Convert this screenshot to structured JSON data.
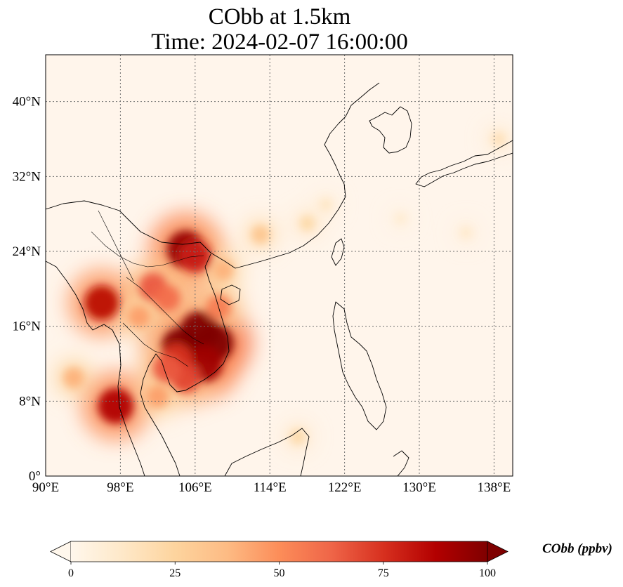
{
  "title": {
    "line1": "CObb at 1.5km",
    "line2": "Time: 2024-02-07 16:00:00"
  },
  "map": {
    "lon_range": [
      90,
      140
    ],
    "lat_range": [
      0,
      45
    ],
    "lon_ticks": [
      {
        "value": 90,
        "label": "90°E"
      },
      {
        "value": 98,
        "label": "98°E"
      },
      {
        "value": 106,
        "label": "106°E"
      },
      {
        "value": 114,
        "label": "114°E"
      },
      {
        "value": 122,
        "label": "122°E"
      },
      {
        "value": 130,
        "label": "130°E"
      },
      {
        "value": 138,
        "label": "138°E"
      }
    ],
    "lat_ticks": [
      {
        "value": 0,
        "label": "0°"
      },
      {
        "value": 8,
        "label": "8°N"
      },
      {
        "value": 16,
        "label": "16°N"
      },
      {
        "value": 24,
        "label": "24°N"
      },
      {
        "value": 32,
        "label": "32°N"
      },
      {
        "value": 40,
        "label": "40°N"
      }
    ],
    "gridlines": true,
    "background_color": "#fff5eb",
    "hotspots": [
      {
        "lon": 106.5,
        "lat": 15.5,
        "value": 100
      },
      {
        "lon": 104.5,
        "lat": 13.8,
        "value": 100
      },
      {
        "lon": 108.0,
        "lat": 14.2,
        "value": 100
      },
      {
        "lon": 107.0,
        "lat": 12.0,
        "value": 92
      },
      {
        "lon": 105.0,
        "lat": 24.2,
        "value": 95
      },
      {
        "lon": 106.0,
        "lat": 23.5,
        "value": 80
      },
      {
        "lon": 104.0,
        "lat": 12.5,
        "value": 75
      },
      {
        "lon": 105.0,
        "lat": 10.5,
        "value": 70
      },
      {
        "lon": 103.0,
        "lat": 11.5,
        "value": 65
      },
      {
        "lon": 97.5,
        "lat": 7.5,
        "value": 88
      },
      {
        "lon": 96.0,
        "lat": 18.5,
        "value": 85
      },
      {
        "lon": 101.5,
        "lat": 20.2,
        "value": 65
      },
      {
        "lon": 103.0,
        "lat": 19.0,
        "value": 60
      },
      {
        "lon": 108.5,
        "lat": 18.0,
        "value": 55
      },
      {
        "lon": 100.0,
        "lat": 17.0,
        "value": 45
      },
      {
        "lon": 93.0,
        "lat": 10.5,
        "value": 40
      },
      {
        "lon": 102.0,
        "lat": 8.5,
        "value": 45
      },
      {
        "lon": 109.0,
        "lat": 22.0,
        "value": 40
      },
      {
        "lon": 113.0,
        "lat": 25.8,
        "value": 32
      },
      {
        "lon": 118.0,
        "lat": 27.0,
        "value": 22
      },
      {
        "lon": 120.0,
        "lat": 29.0,
        "value": 14
      },
      {
        "lon": 117.0,
        "lat": 4.2,
        "value": 22
      },
      {
        "lon": 128.0,
        "lat": 27.5,
        "value": 10
      },
      {
        "lon": 135.0,
        "lat": 26.0,
        "value": 12
      },
      {
        "lon": 138.5,
        "lat": 36.0,
        "value": 18
      }
    ]
  },
  "colorbar": {
    "label": "CObb (ppbv)",
    "min": 0,
    "max": 100,
    "extend": "both",
    "colormap": "OrRd",
    "colors": [
      "#fff7ec",
      "#fee8c8",
      "#fdd49e",
      "#fdbb84",
      "#fc8d59",
      "#ef6548",
      "#d7301f",
      "#b30000",
      "#7f0000"
    ],
    "ticks": [
      {
        "value": 0,
        "label": "0"
      },
      {
        "value": 25,
        "label": "25"
      },
      {
        "value": 50,
        "label": "50"
      },
      {
        "value": 75,
        "label": "75"
      },
      {
        "value": 100,
        "label": "100"
      }
    ]
  }
}
